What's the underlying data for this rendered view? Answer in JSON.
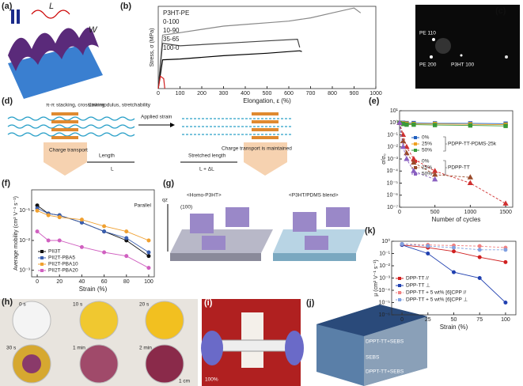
{
  "figure": {
    "a": {
      "label": "(a)",
      "L": "L",
      "W": "W"
    },
    "b": {
      "label": "(b)"
    },
    "c": {
      "label": "(c)",
      "spots": [
        "PE 110",
        "PE 200",
        "P3HT 100"
      ]
    },
    "d": {
      "label": "(d)",
      "stacking": "π-π stacking, crosslinking",
      "modulus": "Low modulus, stretchability",
      "transport": "Charge transport",
      "length": "Length",
      "L": "L",
      "strain": "Applied strain",
      "stretched": "Stretched length",
      "L2": "L + ΔL",
      "maintained": "Charge transport is maintained"
    },
    "e": {
      "label": "(e)"
    },
    "f": {
      "label": "(f)"
    },
    "g": {
      "label": "(g)",
      "homo": "<Homo-P3HT>",
      "blend": "<P3HT/PDMS blend>",
      "plane": "(100)",
      "axis": "qz"
    },
    "h": {
      "label": "(h)",
      "times": [
        "0 s",
        "10 s",
        "20 s",
        "30 s",
        "1 min",
        "2 min"
      ],
      "scale": "1 cm"
    },
    "i": {
      "label": "(i)",
      "strain": "100%"
    },
    "j": {
      "label": "(j)",
      "layers": [
        "DPPT-TT+SEBS",
        "SEBS",
        "DPPT-TT+SEBS"
      ]
    },
    "k": {
      "label": "(k)"
    }
  },
  "chart_data": [
    {
      "type": "line",
      "xlabel": "Elongation, ε (%)",
      "ylabel": "Stress, σ (MPa)",
      "legend_title": "P3HT-PE",
      "xlim": [
        0,
        1000
      ],
      "xticks": [
        0,
        100,
        200,
        300,
        400,
        500,
        600,
        700,
        800,
        900,
        1000
      ],
      "ylim": [
        0,
        10
      ],
      "series": [
        {
          "name": "0-100",
          "color": "#888888",
          "x": [
            0,
            20,
            100,
            200,
            300,
            400,
            500,
            600,
            700,
            800,
            900,
            930
          ],
          "values": [
            0,
            6.5,
            6.8,
            7.2,
            7.6,
            7.8,
            8,
            8.2,
            8.6,
            9.2,
            9.8,
            9.2
          ]
        },
        {
          "name": "10-90",
          "color": "#444444",
          "x": [
            0,
            20,
            100,
            300,
            500,
            640,
            650
          ],
          "values": [
            0,
            5.5,
            5.2,
            5.5,
            5.8,
            6,
            5
          ]
        },
        {
          "name": "35-65",
          "color": "#000000",
          "x": [
            0,
            20,
            100,
            300,
            500,
            650,
            660
          ],
          "values": [
            0,
            3.5,
            3.6,
            4,
            4.3,
            4.6,
            4.5
          ]
        },
        {
          "name": "100-0",
          "color": "#d02020",
          "x": [
            0,
            10,
            25,
            30
          ],
          "values": [
            0,
            1.5,
            1.2,
            0
          ]
        }
      ]
    },
    {
      "type": "line",
      "xlabel": "Number of cycles",
      "ylabel": "σ/σ₀",
      "ylog": true,
      "xlim": [
        0,
        1600
      ],
      "xticks": [
        0,
        500,
        1000,
        1500
      ],
      "ylim": [
        1e-07,
        10
      ],
      "yticks": [
        {
          "value": 1e-07,
          "label": "10⁻⁷"
        },
        {
          "value": 1e-06,
          "label": "10⁻⁶"
        },
        {
          "value": 1e-05,
          "label": "10⁻⁵"
        },
        {
          "value": 0.0001,
          "label": "10⁻⁴"
        },
        {
          "value": 0.001,
          "label": "10⁻³"
        },
        {
          "value": 0.01,
          "label": "10⁻²"
        },
        {
          "value": 0.1,
          "label": "10⁻¹"
        },
        {
          "value": 1,
          "label": "10⁰"
        },
        {
          "value": 10,
          "label": "10¹"
        }
      ],
      "series_groups": [
        {
          "name": "PDPP-TT-PDMS-25k",
          "series": [
            {
              "name": "0%",
              "color": "#1f5fbf",
              "marker": "square",
              "x": [
                0,
                50,
                100,
                200,
                500,
                1000,
                1500
              ],
              "values": [
                1,
                1,
                0.95,
                0.95,
                0.9,
                0.9,
                0.85
              ]
            },
            {
              "name": "25%",
              "color": "#f0a020",
              "marker": "square",
              "x": [
                0,
                50,
                100,
                200,
                500,
                1000,
                1500
              ],
              "values": [
                1,
                0.9,
                0.85,
                0.8,
                0.8,
                0.75,
                0.7
              ]
            },
            {
              "name": "50%",
              "color": "#3a9a3a",
              "marker": "square",
              "x": [
                0,
                50,
                100,
                200,
                500,
                1000,
                1500
              ],
              "values": [
                1,
                0.8,
                0.7,
                0.7,
                0.65,
                0.6,
                0.55
              ]
            }
          ]
        },
        {
          "name": "PDPP-TT",
          "series": [
            {
              "name": "0%",
              "color": "#d03030",
              "marker": "triangle",
              "dashed": true,
              "x": [
                0,
                50,
                100,
                200,
                500,
                1000,
                1500
              ],
              "values": [
                1,
                0.1,
                0.01,
                0.001,
                0.0001,
                1e-05,
                2e-07
              ]
            },
            {
              "name": "25%",
              "color": "#9a4a2a",
              "marker": "triangle",
              "dashed": true,
              "x": [
                0,
                50,
                100,
                200,
                500,
                1000
              ],
              "values": [
                1,
                0.03,
                0.003,
                0.0005,
                5e-05,
                3e-05
              ]
            },
            {
              "name": "50%",
              "color": "#8a60c0",
              "marker": "triangle",
              "dashed": true,
              "x": [
                0,
                50,
                100,
                200,
                500
              ],
              "values": [
                1,
                0.01,
                0.001,
                0.0001,
                2e-05
              ]
            }
          ]
        }
      ]
    },
    {
      "type": "line",
      "xlabel": "Strain (%)",
      "ylabel": "Average mobility (cm² V⁻¹ s⁻¹)",
      "ylog": true,
      "annotation": "Parallel",
      "x": [
        0,
        10,
        20,
        40,
        60,
        80,
        100
      ],
      "xlim": [
        -5,
        105
      ],
      "xticks": [
        0,
        20,
        40,
        60,
        80,
        100
      ],
      "ylim": [
        0.0006,
        0.5
      ],
      "yticks": [
        {
          "value": 0.001,
          "label": "10⁻³"
        },
        {
          "value": 0.01,
          "label": "10⁻²"
        },
        {
          "value": 0.1,
          "label": "10⁻¹"
        }
      ],
      "series": [
        {
          "name": "PII3T",
          "color": "#111111",
          "marker": "circle",
          "values": [
            0.15,
            0.08,
            0.07,
            0.04,
            0.02,
            0.01,
            0.003
          ]
        },
        {
          "name": "PII2T-PBA5",
          "color": "#3a5fb0",
          "marker": "circle",
          "values": [
            0.12,
            0.08,
            0.07,
            0.04,
            0.02,
            0.012,
            0.004
          ]
        },
        {
          "name": "PII2T-PBA10",
          "color": "#f0a030",
          "marker": "circle",
          "values": [
            0.1,
            0.07,
            0.06,
            0.05,
            0.03,
            0.02,
            0.01
          ]
        },
        {
          "name": "PII2T-PBA20",
          "color": "#d060c0",
          "marker": "circle",
          "values": [
            0.02,
            0.01,
            0.01,
            0.006,
            0.004,
            0.003,
            0.0012
          ]
        }
      ]
    },
    {
      "type": "line",
      "xlabel": "Strain (%)",
      "ylabel": "μ (cm² V⁻¹ s⁻¹)",
      "ylog": true,
      "x": [
        0,
        25,
        50,
        75,
        100
      ],
      "xlim": [
        -10,
        110
      ],
      "xticks": [
        0,
        25,
        50,
        75,
        100
      ],
      "ylim": [
        1e-06,
        1
      ],
      "yticks": [
        {
          "value": 1e-06,
          "label": "10⁻⁶"
        },
        {
          "value": 1e-05,
          "label": "10⁻⁵"
        },
        {
          "value": 0.0001,
          "label": "10⁻⁴"
        },
        {
          "value": 0.001,
          "label": "10⁻³"
        },
        {
          "value": 0.01,
          "label": "10⁻²"
        },
        {
          "value": 0.1,
          "label": "10⁻¹"
        },
        {
          "value": 1,
          "label": "10⁰"
        }
      ],
      "series": [
        {
          "name": "DPP-TT //",
          "color": "#d02020",
          "marker": "circle",
          "values": [
            0.5,
            0.3,
            0.15,
            0.05,
            0.02
          ]
        },
        {
          "name": "DPP-TT ⊥",
          "color": "#2040b0",
          "marker": "circle",
          "values": [
            0.5,
            0.1,
            0.003,
            0.001,
            1e-05
          ]
        },
        {
          "name": "DPP-TT + 5 wt% [6]CPP //",
          "color": "#f08080",
          "marker": "circle",
          "dashed": true,
          "values": [
            0.6,
            0.5,
            0.45,
            0.4,
            0.3
          ]
        },
        {
          "name": "DPP-TT + 5 wt% [6]CPP ⊥",
          "color": "#80a0e0",
          "marker": "circle",
          "dashed": true,
          "values": [
            0.6,
            0.4,
            0.3,
            0.2,
            0.2
          ]
        }
      ]
    }
  ]
}
